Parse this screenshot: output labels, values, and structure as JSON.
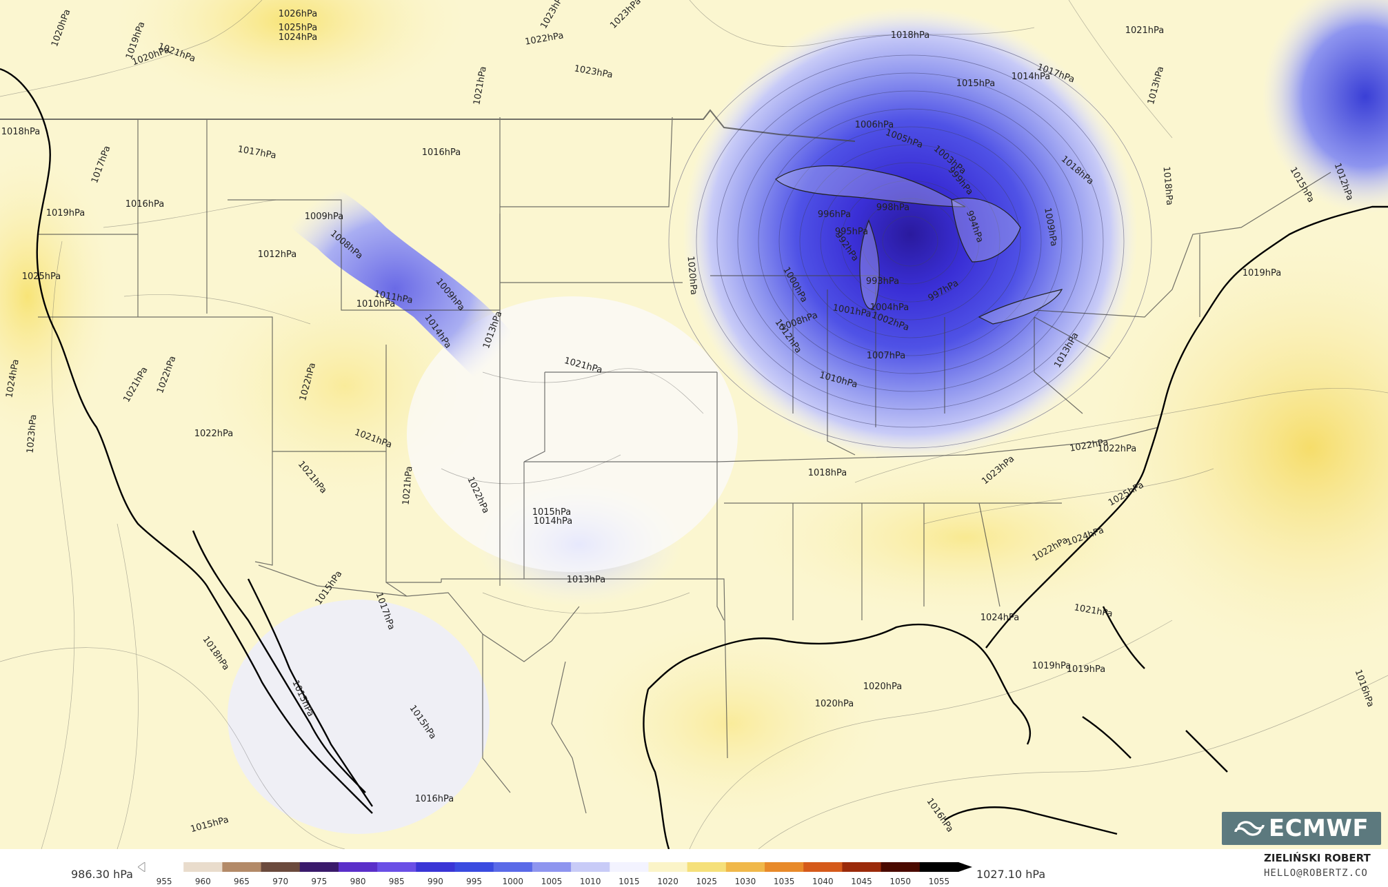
{
  "map": {
    "source_logo_text": "ECMWF",
    "isobar_labels": [
      "1026hPa",
      "1025hPa",
      "1024hPa",
      "1023hPa",
      "1022hPa",
      "1023hPa",
      "1023hPa",
      "1021hPa",
      "1020hPa",
      "1021hPa",
      "1020hPa",
      "1019hPa",
      "1018hPa",
      "1017hPa",
      "1017hPa",
      "1016hPa",
      "1016hPa",
      "1019hPa",
      "1009hPa",
      "1008hPa",
      "1012hPa",
      "1011hPa",
      "1010hPa",
      "1009hPa",
      "1014hPa",
      "1013hPa",
      "1025hPa",
      "1021hPa",
      "1022hPa",
      "1022hPa",
      "1022hPa",
      "1021hPa",
      "1024hPa",
      "1023hPa",
      "1021hPa",
      "1021hPa",
      "1022hPa",
      "1015hPa",
      "1014hPa",
      "1013hPa",
      "1015hPa",
      "1017hPa",
      "1018hPa",
      "1015hPa",
      "1015hPa",
      "1016hPa",
      "1015hPa",
      "1022hPa",
      "1021hPa",
      "1020hPa",
      "1022hPa",
      "1020hPa",
      "1019hPa",
      "1016hPa",
      "1006hPa",
      "1005hPa",
      "1003hPa",
      "999hPa",
      "998hPa",
      "996hPa",
      "995hPa",
      "994hPa",
      "992hPa",
      "993hPa",
      "997hPa",
      "1004hPa",
      "1000hPa",
      "1001hPa",
      "1002hPa",
      "1007hPa",
      "1008hPa",
      "1010hPa",
      "1012hPa",
      "1009hPa",
      "1013hPa",
      "1018hPa",
      "1014hPa",
      "1015hPa",
      "1017hPa",
      "1018hPa",
      "1018hPa",
      "1016hPa",
      "1013hPa",
      "1015hPa",
      "1012hPa",
      "1022hPa",
      "1023hPa",
      "1025hPa",
      "1024hPa",
      "1021hPa",
      "1019hPa",
      "1020hPa",
      "1021hPa",
      "1018hPa",
      "1019hPa",
      "1024hPa"
    ],
    "colors": {
      "high_pressure": "#f7e57a",
      "low_pressure": "#3a2fd6",
      "land_border": "#333333",
      "coastline": "#000000"
    }
  },
  "legend": {
    "min_label": "986.30 hPa",
    "max_label": "1027.10 hPa",
    "ticks": [
      "955",
      "960",
      "965",
      "970",
      "975",
      "980",
      "985",
      "990",
      "995",
      "1000",
      "1005",
      "1010",
      "1015",
      "1020",
      "1025",
      "1030",
      "1035",
      "1040",
      "1045",
      "1050",
      "1055"
    ],
    "colors": [
      "#ffffff",
      "#e9dccc",
      "#b38a68",
      "#6b4a3d",
      "#3a1a6b",
      "#5a2fc9",
      "#6a4fe6",
      "#3a35d6",
      "#3a4be0",
      "#5a6ae8",
      "#8e95ef",
      "#c8cbf7",
      "#f3f3ff",
      "#fbf4c8",
      "#f5e07a",
      "#f0b84a",
      "#e88a2a",
      "#d55a1a",
      "#9a2a0a",
      "#4a0a00",
      "#000000"
    ]
  },
  "author": {
    "name": "ZIELIŃSKI ROBERT",
    "email": "HELLO@ROBERTZ.CO"
  }
}
